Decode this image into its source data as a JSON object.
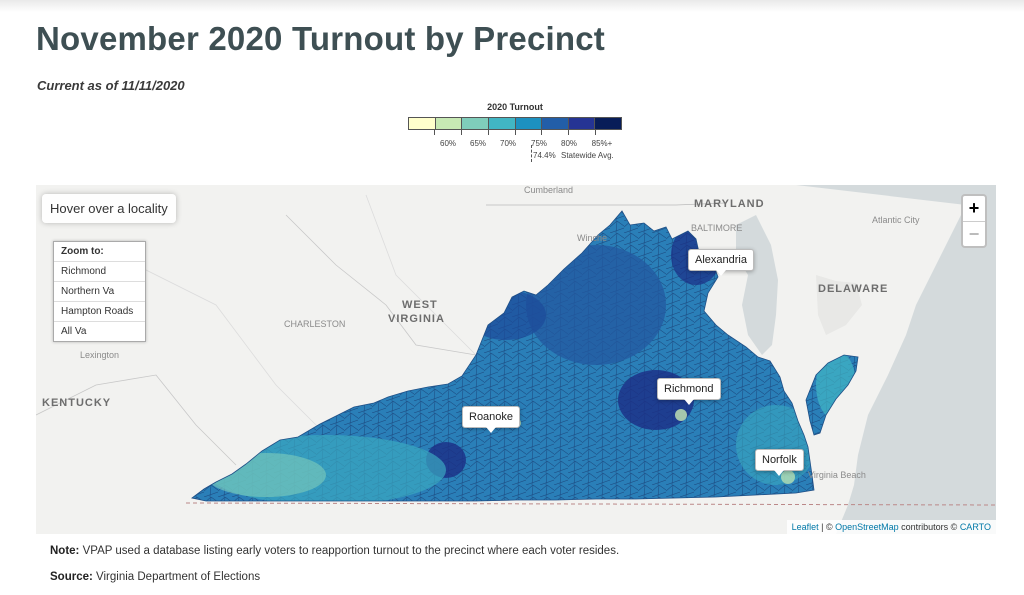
{
  "page": {
    "title": "November 2020 Turnout by Precinct",
    "subtitle": "Current as of 11/11/2020"
  },
  "legend": {
    "title": "2020 Turnout",
    "colors": [
      "#ffffcc",
      "#c7e9b4",
      "#7fcdbb",
      "#41b6c4",
      "#1d91c0",
      "#225ea8",
      "#253494",
      "#081d58"
    ],
    "ticks": [
      "60%",
      "65%",
      "70%",
      "75%",
      "80%",
      "85%+"
    ],
    "average_label": "74.4%",
    "average_caption": "Statewide Avg."
  },
  "map": {
    "hover_hint": "Hover over a locality",
    "zoom_panel": {
      "header": "Zoom to:",
      "options": [
        "Richmond",
        "Northern Va",
        "Hampton Roads",
        "All Va"
      ]
    },
    "zoom_in": "+",
    "zoom_out": "−",
    "state_labels": {
      "maryland": "MARYLAND",
      "west_virginia_1": "WEST",
      "west_virginia_2": "VIRGINIA",
      "delaware": "DELAWARE",
      "kentucky": "KENTUCKY"
    },
    "place_labels": {
      "cumberland": "Cumberland",
      "baltimore": "BALTIMORE",
      "winchester": "Winche",
      "atlantic_city": "Atlantic City",
      "charleston": "CHARLESTON",
      "lexington": "Lexington",
      "virginia_beach": "Virginia Beach"
    },
    "city_tooltips": {
      "alexandria": "Alexandria",
      "richmond": "Richmond",
      "roanoke": "Roanoke",
      "norfolk": "Norfolk"
    },
    "attribution": {
      "leaflet": "Leaflet",
      "sep": " | © ",
      "osm": "OpenStreetMap",
      "contrib": " contributors © ",
      "carto": "CARTO"
    }
  },
  "footer": {
    "note_label": "Note:",
    "note_text": " VPAP used a database listing early voters to reapportion turnout to the precinct where each voter resides.",
    "source_label": "Source:",
    "source_text": " Virginia Department of Elections"
  }
}
